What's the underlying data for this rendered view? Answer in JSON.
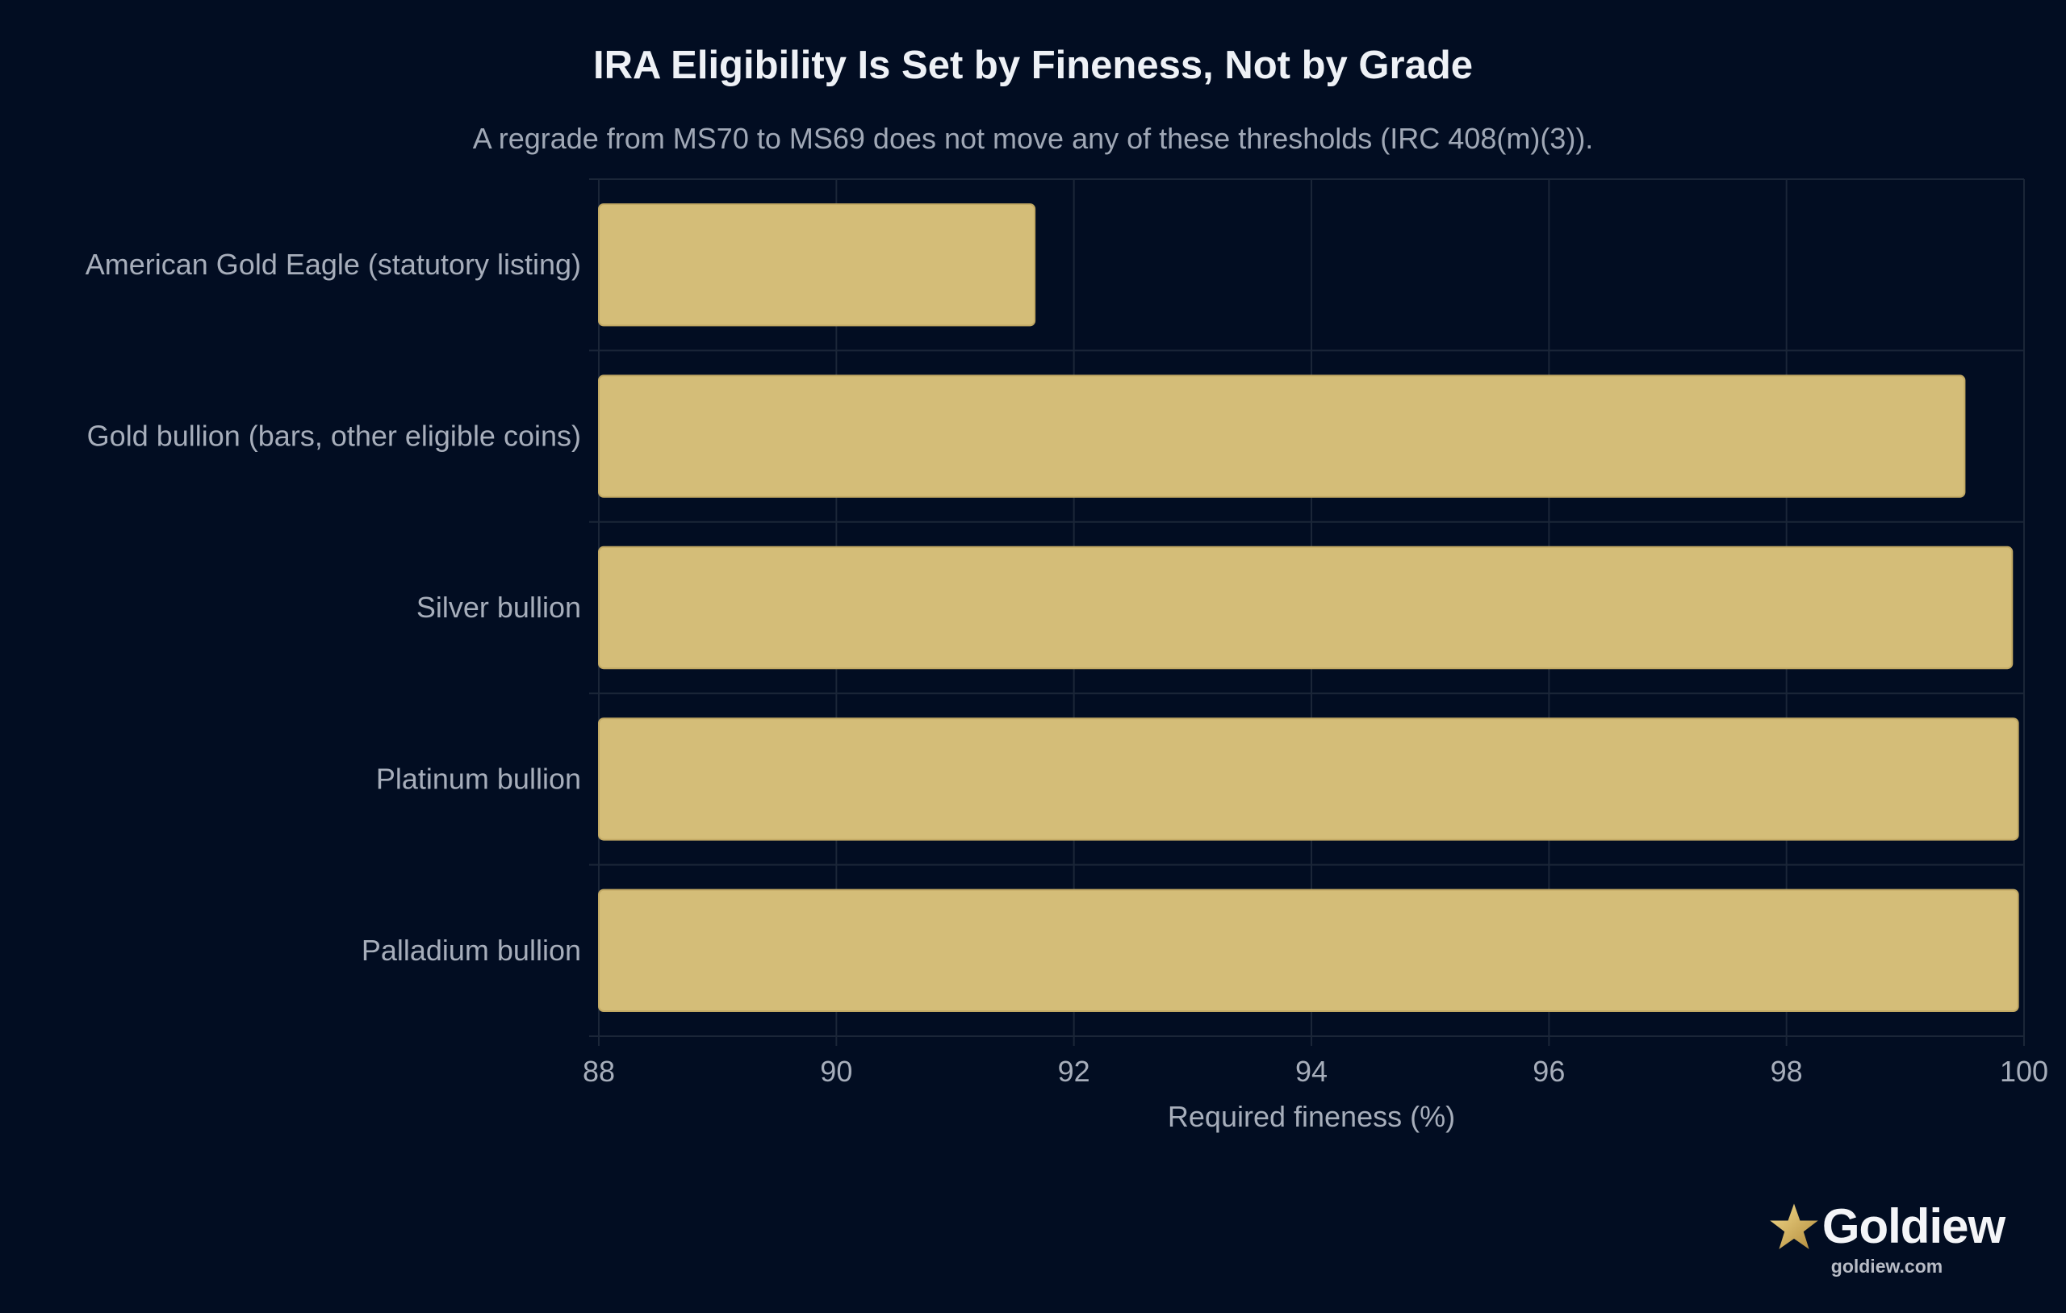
{
  "chart_data": {
    "type": "bar",
    "orientation": "horizontal",
    "title": "IRA Eligibility Is Set by Fineness, Not by Grade",
    "subtitle": "A regrade from MS70 to MS69 does not move any of these thresholds (IRC 408(m)(3)).",
    "xlabel": "Required fineness (%)",
    "ylabel": "",
    "xlim": [
      88,
      100
    ],
    "xticks": [
      "88",
      "90",
      "92",
      "94",
      "96",
      "98",
      "100"
    ],
    "grid": true,
    "categories": [
      "American Gold Eagle (statutory listing)",
      "Gold bullion (bars, other eligible coins)",
      "Silver bullion",
      "Platinum bullion",
      "Palladium bullion"
    ],
    "values": [
      91.67,
      99.5,
      99.9,
      99.95,
      99.95
    ],
    "bar_color": "#d4bd78",
    "bar_edge_color": "#c2a964"
  },
  "colors": {
    "background": "#020d22",
    "grid": "#1b2638",
    "text": "#a7aebb",
    "title": "#eef1f6"
  },
  "brand": {
    "icon": "star-icon",
    "name": "Goldiew",
    "url": "goldiew.com"
  }
}
